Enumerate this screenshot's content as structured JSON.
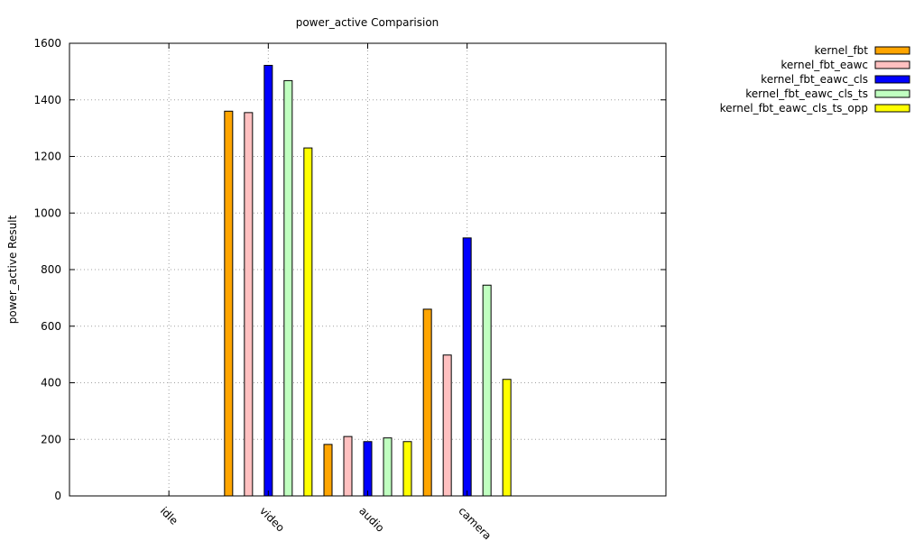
{
  "chart_data": {
    "type": "bar",
    "title": "power_active Comparision",
    "xlabel": "",
    "ylabel": "power_active Result",
    "ylim": [
      0,
      1600
    ],
    "yticks": [
      0,
      200,
      400,
      600,
      800,
      1000,
      1200,
      1400,
      1600
    ],
    "categories": [
      "idle",
      "video",
      "audio",
      "camera"
    ],
    "grid": true,
    "legend_position": "top-right",
    "series": [
      {
        "name": "kernel_fbt",
        "color": "#ffa500",
        "values": [
          0,
          1360,
          182,
          660
        ]
      },
      {
        "name": "kernel_fbt_eawc",
        "color": "#ffc0c0",
        "values": [
          0,
          1355,
          210,
          498
        ]
      },
      {
        "name": "kernel_fbt_eawc_cls",
        "color": "#0000ff",
        "values": [
          0,
          1522,
          192,
          912
        ]
      },
      {
        "name": "kernel_fbt_eawc_cls_ts",
        "color": "#c0ffc0",
        "values": [
          0,
          1468,
          205,
          745
        ]
      },
      {
        "name": "kernel_fbt_eawc_cls_ts_opp",
        "color": "#ffff00",
        "values": [
          0,
          1230,
          192,
          412
        ]
      }
    ]
  }
}
